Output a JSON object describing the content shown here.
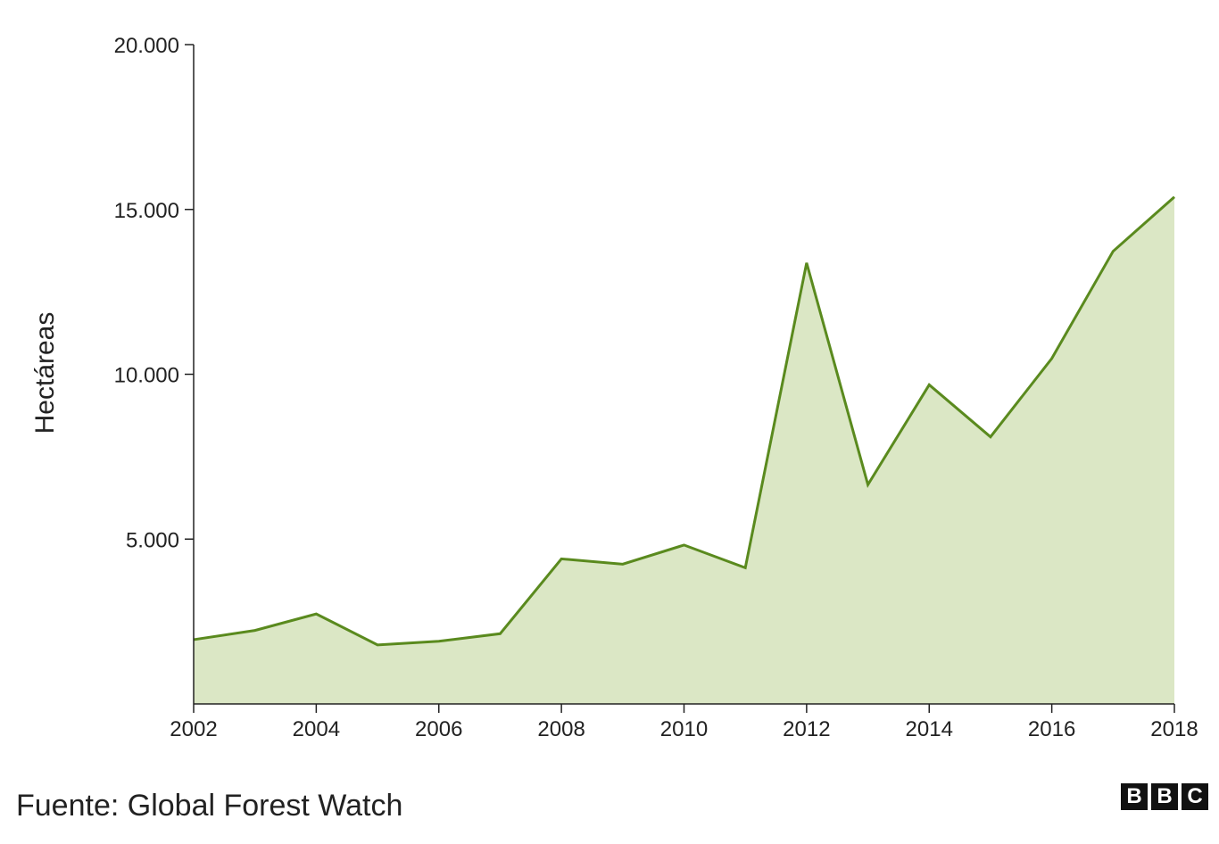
{
  "chart_data": {
    "type": "area",
    "title": "",
    "xlabel": "",
    "ylabel": "Hectáreas",
    "x": [
      2002,
      2003,
      2004,
      2005,
      2006,
      2007,
      2008,
      2009,
      2010,
      2011,
      2012,
      2013,
      2014,
      2015,
      2016,
      2017,
      2018
    ],
    "series": [
      {
        "values": [
          1950,
          2230,
          2730,
          1790,
          1900,
          2130,
          4400,
          4240,
          4820,
          4130,
          13380,
          6650,
          9680,
          8100,
          10480,
          13730,
          15380
        ]
      }
    ],
    "xlim": [
      2002,
      2018
    ],
    "ylim": [
      0,
      20000
    ],
    "x_ticks": [
      2002,
      2004,
      2006,
      2008,
      2010,
      2012,
      2014,
      2016,
      2018
    ],
    "x_tick_labels": [
      "2002",
      "2004",
      "2006",
      "2008",
      "2010",
      "2012",
      "2014",
      "2016",
      "2018"
    ],
    "y_ticks": [
      5000,
      10000,
      15000,
      20000
    ],
    "y_tick_labels": [
      "5.000",
      "10.000",
      "15.000",
      "20.000"
    ],
    "grid": false,
    "colors": {
      "line": "#5a8a1e",
      "fill": "#dbe7c5",
      "axis": "#222222"
    }
  },
  "footer": {
    "source": "Fuente: Global Forest Watch",
    "logo_letters": [
      "B",
      "B",
      "C"
    ]
  }
}
